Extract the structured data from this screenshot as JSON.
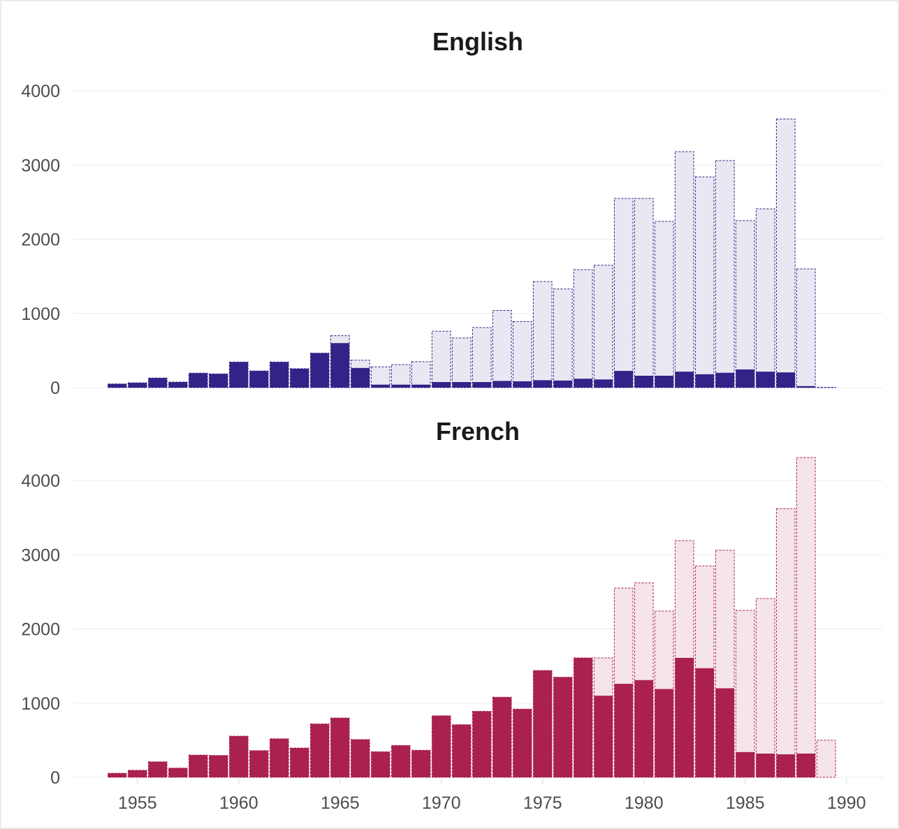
{
  "chart_data": [
    {
      "type": "bar",
      "title": "English",
      "colors": {
        "fill": "#332288",
        "background_fill": "#e8e8f2",
        "outline": "#332288"
      },
      "x": [
        1954,
        1955,
        1956,
        1957,
        1958,
        1959,
        1960,
        1961,
        1962,
        1963,
        1964,
        1965,
        1966,
        1967,
        1968,
        1969,
        1970,
        1971,
        1972,
        1973,
        1974,
        1975,
        1976,
        1977,
        1978,
        1979,
        1980,
        1981,
        1982,
        1983,
        1984,
        1985,
        1986,
        1987,
        1988,
        1989
      ],
      "series": [
        {
          "values": [
            50,
            65,
            130,
            75,
            195,
            185,
            345,
            225,
            345,
            255,
            465,
            600,
            265,
            40,
            40,
            40,
            75,
            75,
            75,
            90,
            85,
            100,
            95,
            120,
            110,
            225,
            160,
            160,
            215,
            180,
            200,
            245,
            215,
            205,
            20,
            0
          ]
        },
        {
          "values": [
            50,
            65,
            130,
            75,
            195,
            185,
            345,
            225,
            345,
            255,
            465,
            700,
            370,
            280,
            310,
            350,
            760,
            670,
            810,
            1040,
            890,
            1430,
            1330,
            1590,
            1650,
            2550,
            2550,
            2240,
            3180,
            2840,
            3060,
            2250,
            2410,
            3620,
            1600,
            5
          ]
        }
      ],
      "yticks": [
        0,
        1000,
        2000,
        3000,
        4000
      ],
      "ylim": [
        0,
        4200
      ],
      "xlim": [
        1951.8,
        1991.8
      ],
      "grid": true
    },
    {
      "type": "bar",
      "title": "French",
      "colors": {
        "fill": "#aa2050",
        "background_fill": "#f5e4ea",
        "outline": "#aa2050"
      },
      "x": [
        1954,
        1955,
        1956,
        1957,
        1958,
        1959,
        1960,
        1961,
        1962,
        1963,
        1964,
        1965,
        1966,
        1967,
        1968,
        1969,
        1970,
        1971,
        1972,
        1973,
        1974,
        1975,
        1976,
        1977,
        1978,
        1979,
        1980,
        1981,
        1982,
        1983,
        1984,
        1985,
        1986,
        1987,
        1988,
        1989
      ],
      "series": [
        {
          "values": [
            55,
            95,
            210,
            125,
            300,
            295,
            555,
            360,
            520,
            395,
            720,
            800,
            510,
            345,
            430,
            365,
            830,
            710,
            890,
            1080,
            920,
            1440,
            1350,
            1610,
            1100,
            1260,
            1310,
            1190,
            1610,
            1470,
            1200,
            340,
            320,
            310,
            320,
            0
          ]
        },
        {
          "values": [
            55,
            95,
            210,
            125,
            300,
            295,
            555,
            360,
            520,
            395,
            720,
            800,
            510,
            345,
            430,
            365,
            830,
            710,
            890,
            1080,
            920,
            1440,
            1350,
            1610,
            1610,
            2550,
            2620,
            2240,
            3190,
            2850,
            3060,
            2250,
            2410,
            3620,
            4310,
            500
          ]
        }
      ],
      "yticks": [
        0,
        1000,
        2000,
        3000,
        4000
      ],
      "xticks": [
        1955,
        1960,
        1965,
        1970,
        1975,
        1980,
        1985,
        1990
      ],
      "ylim": [
        0,
        4200
      ],
      "xlim": [
        1951.8,
        1991.8
      ],
      "grid": true
    }
  ]
}
